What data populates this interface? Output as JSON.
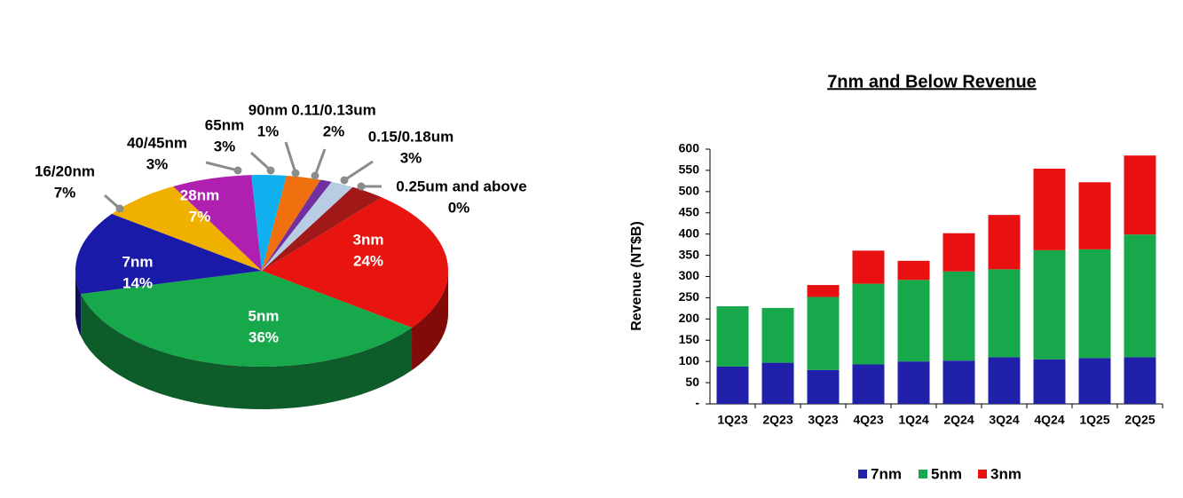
{
  "chart_data": [
    {
      "type": "pie",
      "categories": [
        "3nm",
        "5nm",
        "7nm",
        "16/20nm",
        "28nm",
        "40/45nm",
        "65nm",
        "90nm",
        "0.11/0.13um",
        "0.15/0.18um",
        "0.25um and above"
      ],
      "values": [
        24,
        36,
        14,
        7,
        7,
        3,
        3,
        1,
        2,
        3,
        0
      ],
      "value_labels": [
        "24%",
        "36%",
        "14%",
        "7%",
        "7%",
        "3%",
        "3%",
        "1%",
        "2%",
        "3%",
        "0%"
      ],
      "colors": [
        "#e8140f",
        "#18a84c",
        "#1a1aa8",
        "#f0b000",
        "#b020b0",
        "#10b0f0",
        "#f07010",
        "#7030a0",
        "#b8cce4",
        "#a01818",
        "#c00000"
      ]
    },
    {
      "type": "bar",
      "stacked": true,
      "title": "7nm and Below Revenue",
      "ylabel": "Revenue (NT$B)",
      "categories": [
        "1Q23",
        "2Q23",
        "3Q23",
        "4Q23",
        "1Q24",
        "2Q24",
        "3Q24",
        "4Q24",
        "1Q25",
        "2Q25"
      ],
      "series": [
        {
          "name": "7nm",
          "color": "#2020a8",
          "values": [
            88,
            97,
            80,
            93,
            100,
            102,
            110,
            105,
            108,
            110
          ]
        },
        {
          "name": "5nm",
          "color": "#18a84c",
          "values": [
            142,
            129,
            172,
            190,
            192,
            210,
            207,
            257,
            256,
            289
          ]
        },
        {
          "name": "3nm",
          "color": "#e81010",
          "values": [
            0,
            0,
            28,
            78,
            45,
            90,
            128,
            192,
            158,
            186
          ]
        }
      ],
      "ylim": [
        0,
        600
      ],
      "yticks": [
        {
          "value": 0,
          "label": "-"
        },
        50,
        100,
        150,
        200,
        250,
        300,
        350,
        400,
        450,
        500,
        550,
        600
      ]
    }
  ]
}
